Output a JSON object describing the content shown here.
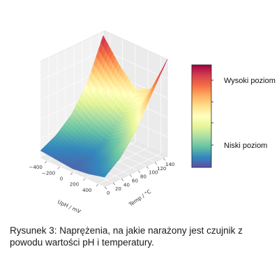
{
  "chart_data": {
    "type": "surface3d",
    "title": "",
    "xlabel": "UpH / mV",
    "ylabel": "Temp / °C",
    "zlabel": "",
    "xlim": [
      -500,
      500
    ],
    "ylim": [
      0,
      150
    ],
    "xticks": [
      "-400",
      "-200",
      "0",
      "200",
      "400"
    ],
    "yticks": [
      "0",
      "20",
      "40",
      "60",
      "80",
      "100",
      "120",
      "140"
    ],
    "colormap": "Spectral_r",
    "colorbar_labels": {
      "high": "Wysoki poziom",
      "low": "Niski poziom"
    },
    "surface": {
      "x": [
        -500,
        -250,
        0,
        250,
        500
      ],
      "y": [
        0,
        37.5,
        75,
        112.5,
        150
      ],
      "z": [
        [
          0.08,
          0.06,
          0.04,
          0.06,
          0.1
        ],
        [
          0.16,
          0.1,
          0.07,
          0.12,
          0.22
        ],
        [
          0.3,
          0.2,
          0.14,
          0.24,
          0.42
        ],
        [
          0.55,
          0.4,
          0.3,
          0.45,
          0.72
        ],
        [
          0.95,
          0.72,
          0.55,
          0.62,
          1.0
        ]
      ]
    }
  },
  "caption": {
    "line1": "Rysunek 3: Naprężenia, na jakie narażony jest czujnik z",
    "line2": "powodu wartości pH i temperatury."
  }
}
